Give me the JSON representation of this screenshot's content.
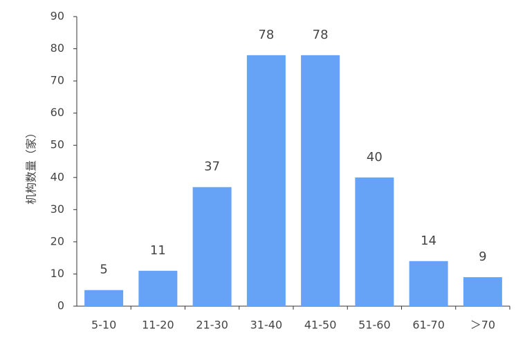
{
  "chart_data": {
    "type": "bar",
    "y_label": "机构数量（家）",
    "categories": [
      "5-10",
      "11-20",
      "21-30",
      "31-40",
      "41-50",
      "51-60",
      "61-70",
      "＞70"
    ],
    "values": [
      5,
      11,
      37,
      78,
      78,
      40,
      14,
      9
    ],
    "color": "#66a3f7",
    "ylim": [
      0,
      90
    ],
    "yticks": [
      0,
      10,
      20,
      30,
      40,
      50,
      60,
      70,
      80,
      90
    ],
    "grid": false
  }
}
